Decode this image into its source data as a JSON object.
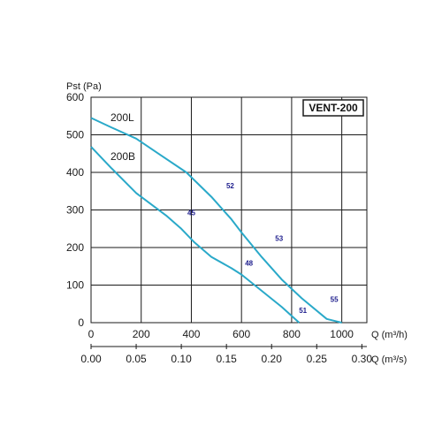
{
  "chart_data": {
    "type": "line",
    "title": "VENT-200",
    "ylabel": "Pst (Pa)",
    "xlabel": "Q (m³/h)",
    "x2label": "Q (m³/s)",
    "xlim": [
      0,
      1100
    ],
    "ylim": [
      0,
      600
    ],
    "xticks": [
      "0",
      "200",
      "400",
      "600",
      "800",
      "1000"
    ],
    "x2ticks": [
      "0.00",
      "0.05",
      "0.10",
      "0.15",
      "0.20",
      "0.25",
      "0.30"
    ],
    "yticks": [
      "0",
      "100",
      "200",
      "300",
      "400",
      "500",
      "600"
    ],
    "grid": true,
    "line_color": "#2aa9c9",
    "series": [
      {
        "name": "200L",
        "points": [
          [
            0,
            545
          ],
          [
            80,
            520
          ],
          [
            180,
            490
          ],
          [
            280,
            445
          ],
          [
            380,
            400
          ],
          [
            480,
            335
          ],
          [
            560,
            275
          ],
          [
            600,
            240
          ],
          [
            680,
            175
          ],
          [
            760,
            115
          ],
          [
            840,
            65
          ],
          [
            940,
            10
          ],
          [
            1000,
            0
          ]
        ]
      },
      {
        "name": "200B",
        "points": [
          [
            0,
            468
          ],
          [
            80,
            412
          ],
          [
            180,
            345
          ],
          [
            300,
            285
          ],
          [
            360,
            250
          ],
          [
            410,
            215
          ],
          [
            480,
            175
          ],
          [
            560,
            145
          ],
          [
            600,
            128
          ],
          [
            680,
            85
          ],
          [
            760,
            42
          ],
          [
            830,
            0
          ]
        ]
      }
    ],
    "annotations": [
      {
        "text": "52",
        "x": 555,
        "y": 358
      },
      {
        "text": "53",
        "x": 750,
        "y": 218
      },
      {
        "text": "55",
        "x": 970,
        "y": 55
      },
      {
        "text": "45",
        "x": 400,
        "y": 286
      },
      {
        "text": "48",
        "x": 630,
        "y": 152
      },
      {
        "text": "51",
        "x": 845,
        "y": 26
      }
    ]
  }
}
